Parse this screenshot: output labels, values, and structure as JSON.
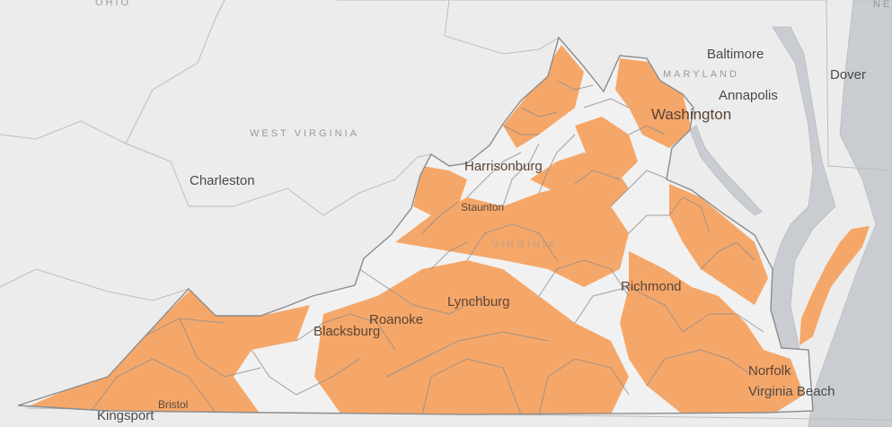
{
  "map": {
    "colors": {
      "land": "#ececec",
      "water": "#c9ccd1",
      "state_border": "#bdbdbd",
      "county_border": "#8c8c8c",
      "coverage_fill": "#f5a769"
    },
    "state_labels": {
      "ohio": "OHIO",
      "west_virginia": "WEST VIRGINIA",
      "maryland": "MARYLAND",
      "virginia": "VIRGINIA",
      "ne": "NE"
    },
    "cities": {
      "baltimore": "Baltimore",
      "dover": "Dover",
      "annapolis": "Annapolis",
      "washington": "Washington",
      "charleston": "Charleston",
      "harrisonburg": "Harrisonburg",
      "staunton": "Staunton",
      "richmond": "Richmond",
      "lynchburg": "Lynchburg",
      "roanoke": "Roanoke",
      "blacksburg": "Blacksburg",
      "norfolk": "Norfolk",
      "virginia_beach": "Virginia Beach",
      "bristol": "Bristol",
      "kingsport": "Kingsport"
    }
  }
}
